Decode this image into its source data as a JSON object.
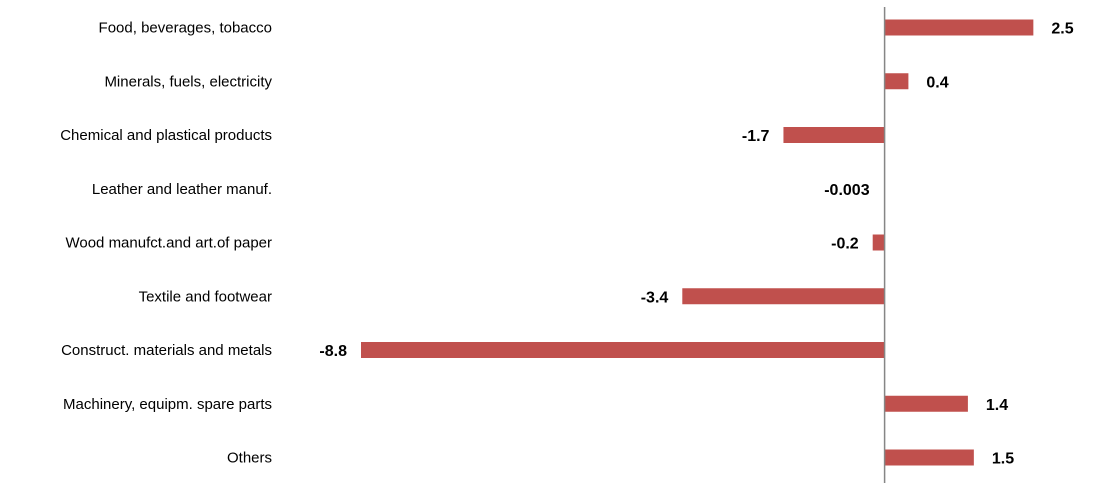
{
  "chart_data": {
    "type": "bar",
    "orientation": "horizontal",
    "title": "",
    "xlabel": "",
    "ylabel": "",
    "categories": [
      "Food, beverages, tobacco",
      "Minerals, fuels, electricity",
      "Chemical and plastical products",
      "Leather and leather manuf.",
      "Wood manufct.and art.of paper",
      "Textile and footwear",
      "Construct. materials and metals",
      "Machinery, equipm. spare parts",
      "Others"
    ],
    "values": [
      2.5,
      0.4,
      -1.7,
      -0.003,
      -0.2,
      -3.4,
      -8.8,
      1.4,
      1.5
    ],
    "value_labels": [
      "2.5",
      "0.4",
      "-1.7",
      "-0.003",
      "-0.2",
      "-3.4",
      "-8.8",
      "1.4",
      "1.5"
    ],
    "xlim": [
      -8.8,
      3.2
    ],
    "bar_color": "#c0504d",
    "axis_color": "#868686",
    "grid": false,
    "legend": "none"
  }
}
